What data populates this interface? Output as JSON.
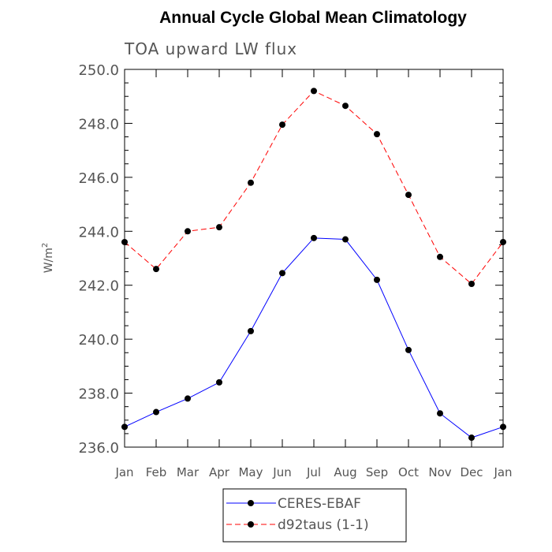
{
  "chart_data": {
    "type": "line",
    "title": "Annual Cycle Global Mean Climatology",
    "subtitle": "TOA upward LW flux",
    "ylabel_base": "W/m",
    "ylabel_sup": "2",
    "xlabel": "",
    "categories": [
      "Jan",
      "Feb",
      "Mar",
      "Apr",
      "May",
      "Jun",
      "Jul",
      "Aug",
      "Sep",
      "Oct",
      "Nov",
      "Dec",
      "Jan"
    ],
    "ylim": [
      236.0,
      250.0
    ],
    "yticks": [
      "236.0",
      "238.0",
      "240.0",
      "242.0",
      "244.0",
      "246.0",
      "248.0",
      "250.0"
    ],
    "series": [
      {
        "name": "CERES-EBAF",
        "color": "#0000ff",
        "dash": "solid",
        "values": [
          236.75,
          237.3,
          237.8,
          238.4,
          240.3,
          242.45,
          243.75,
          243.7,
          242.2,
          239.6,
          237.25,
          236.35,
          236.75
        ]
      },
      {
        "name": "d92taus (1-1)",
        "color": "#ff0000",
        "dash": "dashed",
        "values": [
          243.6,
          242.6,
          244.0,
          244.15,
          245.8,
          247.95,
          249.2,
          248.65,
          247.6,
          245.35,
          243.05,
          242.05,
          243.6
        ]
      }
    ],
    "grid": false,
    "legend_position": "bottom-center"
  }
}
